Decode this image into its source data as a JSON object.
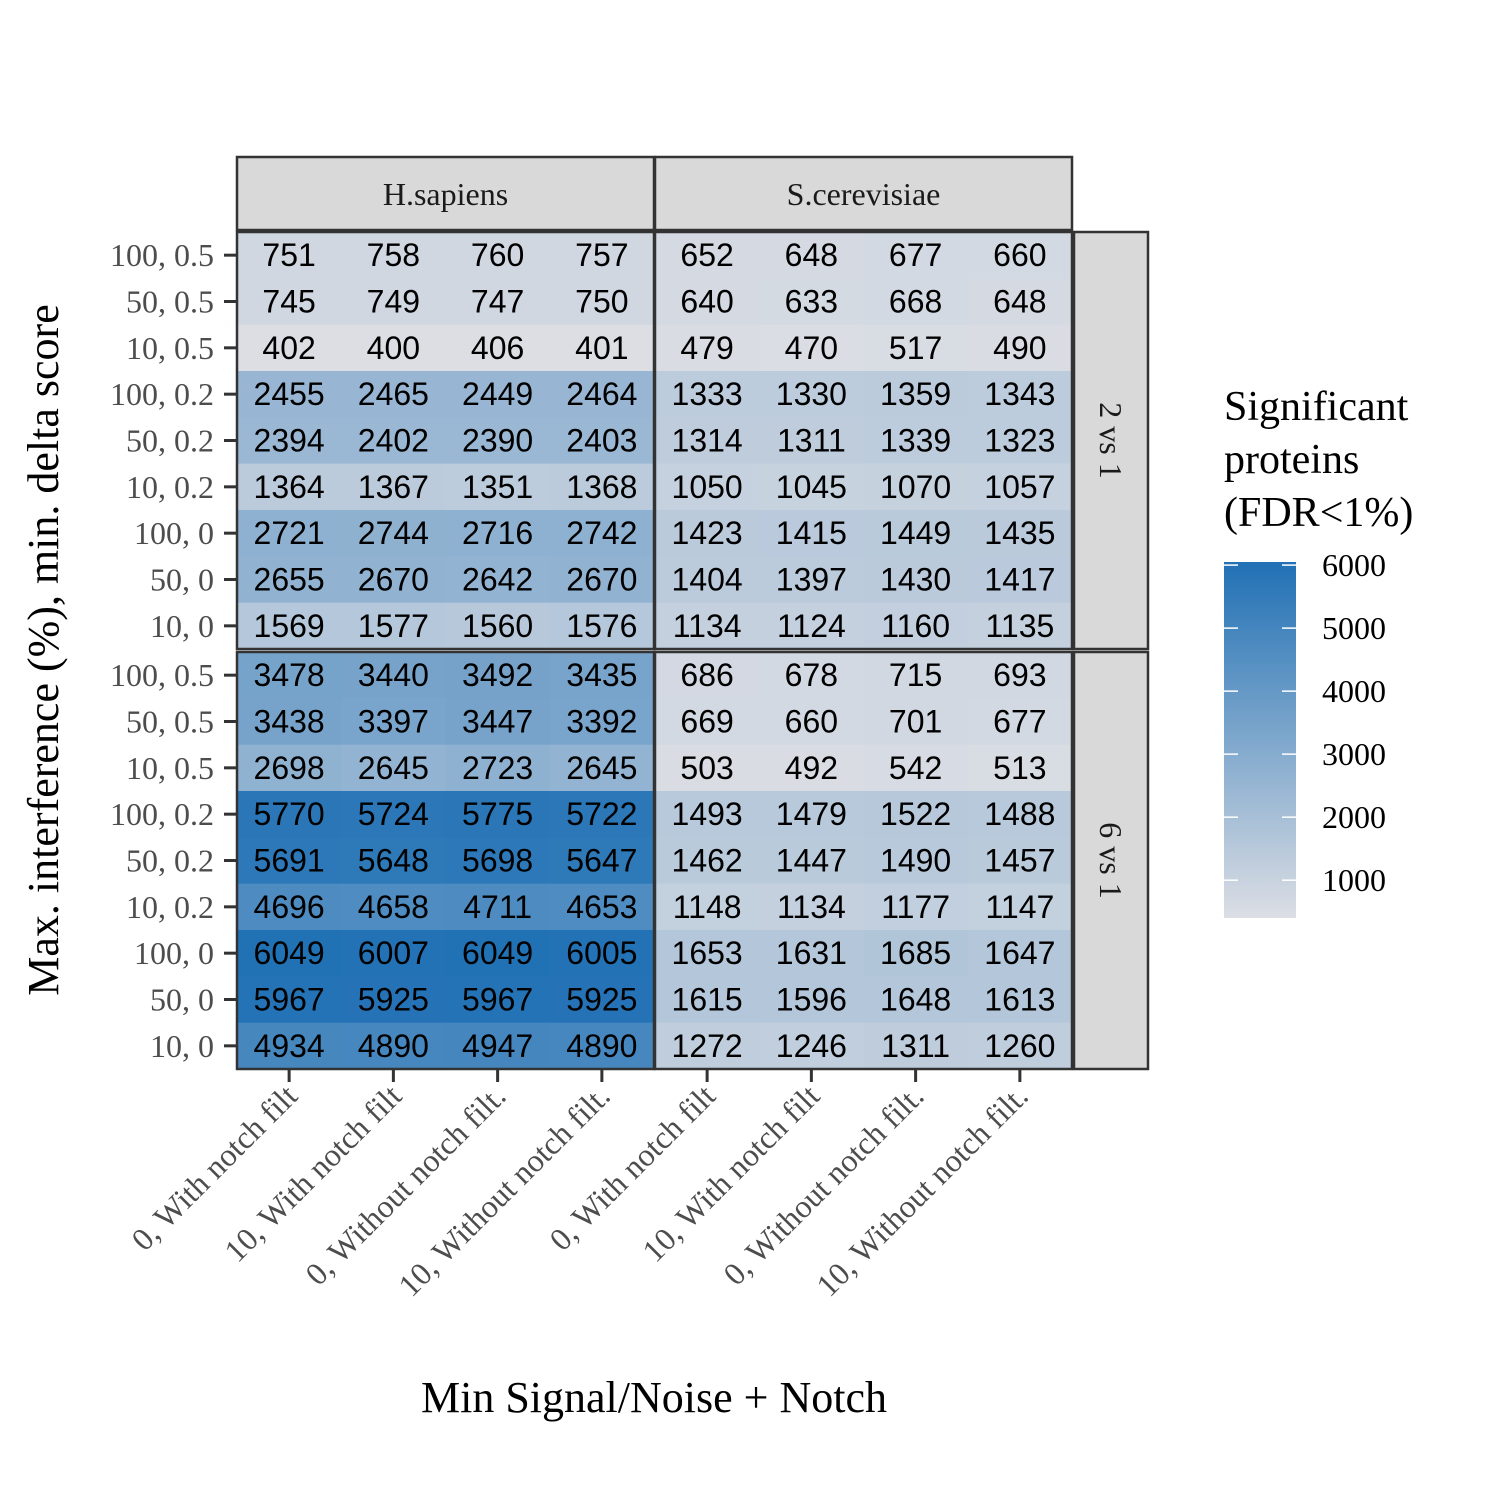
{
  "chart_data": {
    "type": "heatmap",
    "xlabel": "Min Signal/Noise + Notch",
    "ylabel": "Max. interference (%), min. delta score",
    "column_facets": [
      "H.sapiens",
      "S.cerevisiae"
    ],
    "row_facets": [
      "2 vs 1",
      "6 vs 1"
    ],
    "x_categories": [
      "0, With notch filt",
      "10, With notch filt",
      "0, Without notch filt.",
      "10, Without notch filt."
    ],
    "y_categories": [
      "100, 0.5",
      "50, 0.5",
      "10, 0.5",
      "100, 0.2",
      "50, 0.2",
      "10, 0.2",
      "100, 0",
      "50, 0",
      "10, 0"
    ],
    "legend": {
      "title_lines": [
        "Significant",
        "proteins",
        "(FDR<1%)"
      ],
      "ticks": [
        1000,
        2000,
        3000,
        4000,
        5000,
        6000
      ],
      "range": [
        400,
        6049
      ],
      "low_color": "#dcdee4",
      "high_color": "#2171b5"
    },
    "panels": [
      {
        "col": "H.sapiens",
        "row": "2 vs 1",
        "values": [
          [
            751,
            758,
            760,
            757
          ],
          [
            745,
            749,
            747,
            750
          ],
          [
            402,
            400,
            406,
            401
          ],
          [
            2455,
            2465,
            2449,
            2464
          ],
          [
            2394,
            2402,
            2390,
            2403
          ],
          [
            1364,
            1367,
            1351,
            1368
          ],
          [
            2721,
            2744,
            2716,
            2742
          ],
          [
            2655,
            2670,
            2642,
            2670
          ],
          [
            1569,
            1577,
            1560,
            1576
          ]
        ]
      },
      {
        "col": "S.cerevisiae",
        "row": "2 vs 1",
        "values": [
          [
            652,
            648,
            677,
            660
          ],
          [
            640,
            633,
            668,
            648
          ],
          [
            479,
            470,
            517,
            490
          ],
          [
            1333,
            1330,
            1359,
            1343
          ],
          [
            1314,
            1311,
            1339,
            1323
          ],
          [
            1050,
            1045,
            1070,
            1057
          ],
          [
            1423,
            1415,
            1449,
            1435
          ],
          [
            1404,
            1397,
            1430,
            1417
          ],
          [
            1134,
            1124,
            1160,
            1135
          ]
        ]
      },
      {
        "col": "H.sapiens",
        "row": "6 vs 1",
        "values": [
          [
            3478,
            3440,
            3492,
            3435
          ],
          [
            3438,
            3397,
            3447,
            3392
          ],
          [
            2698,
            2645,
            2723,
            2645
          ],
          [
            5770,
            5724,
            5775,
            5722
          ],
          [
            5691,
            5648,
            5698,
            5647
          ],
          [
            4696,
            4658,
            4711,
            4653
          ],
          [
            6049,
            6007,
            6049,
            6005
          ],
          [
            5967,
            5925,
            5967,
            5925
          ],
          [
            4934,
            4890,
            4947,
            4890
          ]
        ]
      },
      {
        "col": "S.cerevisiae",
        "row": "6 vs 1",
        "values": [
          [
            686,
            678,
            715,
            693
          ],
          [
            669,
            660,
            701,
            677
          ],
          [
            503,
            492,
            542,
            513
          ],
          [
            1493,
            1479,
            1522,
            1488
          ],
          [
            1462,
            1447,
            1490,
            1457
          ],
          [
            1148,
            1134,
            1177,
            1147
          ],
          [
            1653,
            1631,
            1685,
            1647
          ],
          [
            1615,
            1596,
            1648,
            1613
          ],
          [
            1272,
            1246,
            1311,
            1260
          ]
        ]
      }
    ]
  }
}
